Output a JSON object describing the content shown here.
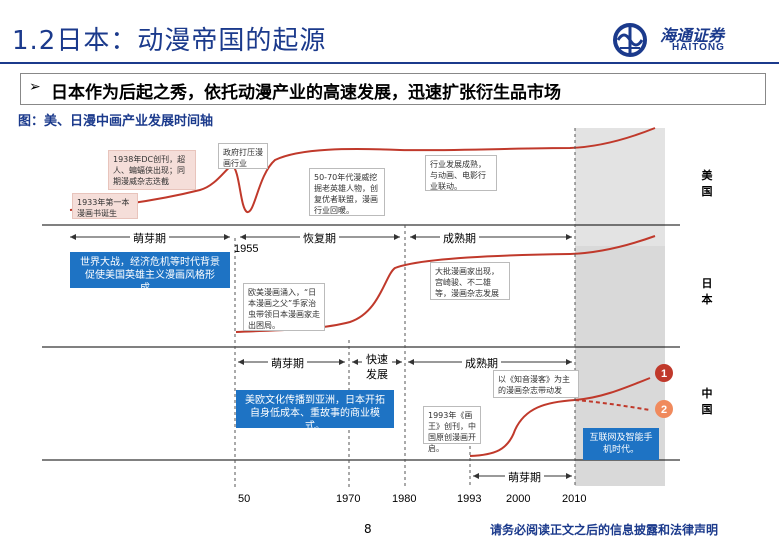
{
  "header": {
    "title": "1.2日本：动漫帝国的起源",
    "logo_cn": "海通证券",
    "logo_en": "HAITONG"
  },
  "headline": "日本作为后起之秀，依托动漫产业的高速发展，迅速扩张衍生品市场",
  "subtitle": "图：美、日漫中画产业发展时间轴",
  "rows": [
    {
      "label": "美国"
    },
    {
      "label": "日本"
    },
    {
      "label": "中国"
    }
  ],
  "us": {
    "notes": [
      "1938年DC创刊，超人、蝙蝠侠出现；同期漫威杂志迭截",
      "1933年第一本漫画书诞生",
      "政府打压漫画行业",
      "50-70年代漫威挖掘老英雄人物，创复优者联盟，漫画行业回暖。",
      "行业发展成熟，与动画、电影行业联动。"
    ],
    "phases": [
      "萌芽期",
      "恢复期",
      "成熟期"
    ],
    "annotation_1955": "1955",
    "bluebox": "世界大战，经济危机等时代背景促使美国英雄主义漫画风格形成。"
  },
  "japan": {
    "notes": [
      "欧美漫画涌入，“日本漫画之父”手冢治虫带领日本漫画家走出困局。",
      "大批漫画家出现，宫崎骏、不二雄等，漫画杂志发展迅猛"
    ],
    "phases": [
      "萌芽期",
      "快速发展",
      "成熟期"
    ],
    "bluebox": "美欧文化传播到亚洲，日本开拓自身低成本、重故事的商业模式。"
  },
  "china": {
    "notes": [
      "1993年《画王》创刊，中国原创漫画开启。",
      "以《知音漫客》为主的漫画杂志带动发展。"
    ],
    "phases": [
      "萌芽期"
    ],
    "bluebox": "互联网及智能手机时代。",
    "markers": [
      "1",
      "2"
    ]
  },
  "axis_years": [
    "50",
    "1970",
    "1980",
    "1993",
    "2000",
    "2010"
  ],
  "footer": {
    "page": "8",
    "disclaimer": "请务必阅读正文之后的信息披露和法律声明"
  },
  "colors": {
    "title": "#1b3a8c",
    "curve": "#c0392b",
    "bluebox": "#1e73c4",
    "marker1": "#c0392b",
    "marker2": "#f08a5d",
    "shade": "#d9d9d9"
  }
}
